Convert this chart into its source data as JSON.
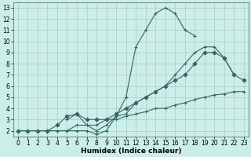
{
  "xlabel": "Humidex (Indice chaleur)",
  "bg_color": "#cceee8",
  "grid_color": "#b0c8c4",
  "line_color": "#336666",
  "xlim": [
    -0.5,
    23.5
  ],
  "ylim": [
    1.5,
    13.5
  ],
  "xticks": [
    0,
    1,
    2,
    3,
    4,
    5,
    6,
    7,
    8,
    9,
    10,
    11,
    12,
    13,
    14,
    15,
    16,
    17,
    18,
    19,
    20,
    21,
    22,
    23
  ],
  "yticks": [
    2,
    3,
    4,
    5,
    6,
    7,
    8,
    9,
    10,
    11,
    12,
    13
  ],
  "series": [
    {
      "x": [
        0,
        1,
        2,
        3,
        4,
        5,
        6,
        7,
        8,
        9,
        10,
        11,
        12,
        13,
        14,
        15,
        16,
        17,
        18,
        19,
        20,
        21,
        22,
        23
      ],
      "y": [
        2,
        2,
        2,
        2,
        2,
        2,
        2,
        2,
        1.7,
        2,
        3.3,
        5,
        9.5,
        11,
        12.5,
        13,
        12.5,
        11,
        10.5,
        null,
        null,
        null,
        null,
        null
      ],
      "marker": "+"
    },
    {
      "x": [
        0,
        1,
        2,
        3,
        4,
        5,
        6,
        7,
        8,
        9,
        10,
        11,
        12,
        13,
        14,
        15,
        16,
        17,
        18,
        19,
        20,
        21,
        22,
        23
      ],
      "y": [
        2,
        2,
        2,
        2,
        2.5,
        3.3,
        3.5,
        3,
        3,
        3,
        3.5,
        4,
        4.5,
        5,
        5.5,
        6,
        6.5,
        7,
        8,
        9,
        9,
        8.5,
        7,
        6.5
      ],
      "marker": "D"
    },
    {
      "x": [
        0,
        1,
        2,
        3,
        4,
        5,
        6,
        7,
        8,
        9,
        10,
        11,
        12,
        13,
        14,
        15,
        16,
        17,
        18,
        19,
        20,
        21,
        22,
        23
      ],
      "y": [
        2,
        2,
        2,
        2,
        2,
        2,
        2.5,
        2.5,
        2.5,
        3,
        3,
        3.3,
        3.5,
        3.7,
        4,
        4,
        4.3,
        4.5,
        4.8,
        5,
        5.2,
        5.3,
        5.5,
        5.5
      ],
      "marker": "+"
    },
    {
      "x": [
        5,
        6,
        7,
        8,
        9,
        10,
        11,
        12,
        13,
        14,
        15,
        16,
        17,
        18,
        19,
        20,
        21,
        22
      ],
      "y": [
        3,
        3.5,
        2.5,
        2,
        2.5,
        3.3,
        3.5,
        4.5,
        5,
        5.5,
        6,
        7,
        8,
        9,
        9.5,
        9.5,
        8.5,
        7
      ],
      "marker": "+"
    }
  ]
}
